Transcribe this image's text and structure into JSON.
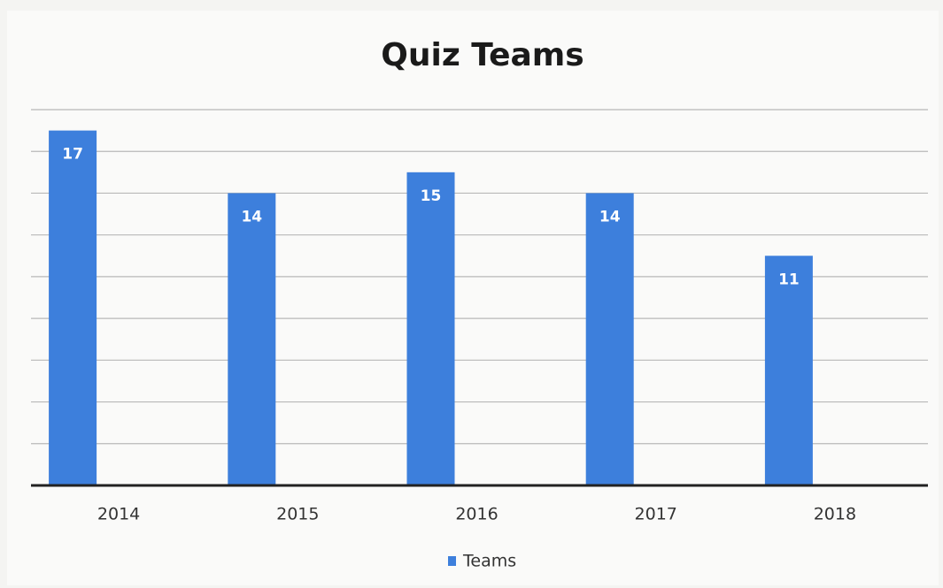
{
  "chart_data": {
    "type": "bar",
    "title": "Quiz Teams",
    "categories": [
      "2014",
      "2015",
      "2016",
      "2017",
      "2018"
    ],
    "series": [
      {
        "name": "Teams",
        "color": "#3d7fdc",
        "values": [
          17,
          14,
          15,
          14,
          11
        ]
      }
    ],
    "ylim": [
      0,
      18
    ],
    "yticks": [
      0,
      2,
      4,
      6,
      8,
      10,
      12,
      14,
      16,
      18
    ],
    "grid": true,
    "legend": "bottom"
  }
}
